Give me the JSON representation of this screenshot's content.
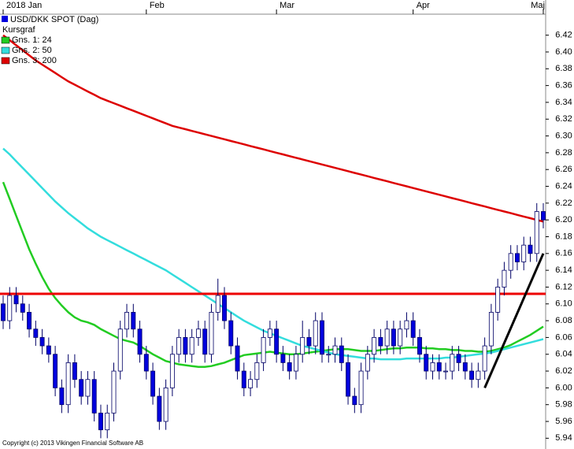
{
  "chart_data": {
    "type": "candlestick",
    "title": "USD/DKK SPOT (Dag)",
    "legend_title": "Kursgraf",
    "copyright": "Copyright (c) 2013 Vikingen Financial Software AB",
    "categories": [
      "2018 Jan",
      null,
      null,
      null,
      null,
      null,
      null,
      null,
      null,
      null,
      null,
      null,
      null,
      null,
      null,
      null,
      null,
      null,
      null,
      null,
      null,
      null,
      "Feb",
      null,
      null,
      null,
      null,
      null,
      null,
      null,
      null,
      null,
      null,
      null,
      null,
      null,
      null,
      null,
      null,
      null,
      null,
      null,
      "Mar",
      null,
      null,
      null,
      null,
      null,
      null,
      null,
      null,
      null,
      null,
      null,
      null,
      null,
      null,
      null,
      null,
      null,
      null,
      null,
      null,
      "Apr",
      null,
      null,
      null,
      null,
      null,
      null,
      null,
      null,
      null,
      null,
      null,
      null,
      null,
      null,
      null,
      null,
      null,
      null,
      null,
      "Maj"
    ],
    "open": [
      6.1,
      6.08,
      6.11,
      6.1,
      6.09,
      6.07,
      6.06,
      6.05,
      6.04,
      6.0,
      5.98,
      6.03,
      6.01,
      5.99,
      6.01,
      5.97,
      5.95,
      5.97,
      6.02,
      6.07,
      6.09,
      6.07,
      6.04,
      6.02,
      5.99,
      5.96,
      6.0,
      6.04,
      6.06,
      6.04,
      6.06,
      6.07,
      6.04,
      6.09,
      6.11,
      6.08,
      6.05,
      6.02,
      6.0,
      6.01,
      6.03,
      6.06,
      6.07,
      6.04,
      6.03,
      6.02,
      6.04,
      6.06,
      6.05,
      6.08,
      6.04,
      6.04,
      6.05,
      6.03,
      5.99,
      5.98,
      6.02,
      6.04,
      6.06,
      6.05,
      6.07,
      6.05,
      6.07,
      6.08,
      6.06,
      6.04,
      6.02,
      6.03,
      6.02,
      6.02,
      6.04,
      6.03,
      6.02,
      6.01,
      6.02,
      6.05,
      6.09,
      6.12,
      6.14,
      6.16,
      6.15,
      6.17,
      6.16,
      6.21
    ],
    "high": [
      6.11,
      6.12,
      6.12,
      6.11,
      6.1,
      6.08,
      6.07,
      6.06,
      6.05,
      6.01,
      6.04,
      6.04,
      6.02,
      6.02,
      6.02,
      5.98,
      5.98,
      6.03,
      6.08,
      6.1,
      6.1,
      6.08,
      6.05,
      6.03,
      6.0,
      6.01,
      6.05,
      6.07,
      6.07,
      6.07,
      6.08,
      6.08,
      6.1,
      6.13,
      6.12,
      6.09,
      6.06,
      6.03,
      6.02,
      6.04,
      6.07,
      6.08,
      6.08,
      6.05,
      6.04,
      6.05,
      6.08,
      6.07,
      6.09,
      6.09,
      6.05,
      6.06,
      6.06,
      6.04,
      6.0,
      6.03,
      6.05,
      6.07,
      6.07,
      6.08,
      6.08,
      6.08,
      6.09,
      6.09,
      6.07,
      6.05,
      6.04,
      6.04,
      6.03,
      6.05,
      6.05,
      6.04,
      6.03,
      6.03,
      6.06,
      6.1,
      6.13,
      6.15,
      6.17,
      6.17,
      6.18,
      6.18,
      6.22,
      6.22
    ],
    "low": [
      6.07,
      6.07,
      6.09,
      6.08,
      6.06,
      6.05,
      6.04,
      6.03,
      5.99,
      5.97,
      5.97,
      6.0,
      5.98,
      5.98,
      5.96,
      5.94,
      5.94,
      5.96,
      6.01,
      6.06,
      6.06,
      6.03,
      6.01,
      5.98,
      5.95,
      5.95,
      5.99,
      6.03,
      6.03,
      6.03,
      6.05,
      6.03,
      6.03,
      6.08,
      6.07,
      6.04,
      6.01,
      5.99,
      5.99,
      6.0,
      6.02,
      6.05,
      6.03,
      6.02,
      6.01,
      6.01,
      6.03,
      6.04,
      6.04,
      6.03,
      6.03,
      6.03,
      6.02,
      5.98,
      5.97,
      5.97,
      6.01,
      6.03,
      6.04,
      6.04,
      6.04,
      6.04,
      6.06,
      6.05,
      6.03,
      6.01,
      6.01,
      6.01,
      6.01,
      6.01,
      6.02,
      6.01,
      6.0,
      6.0,
      6.01,
      6.04,
      6.08,
      6.11,
      6.13,
      6.14,
      6.14,
      6.15,
      6.15,
      6.19
    ],
    "close": [
      6.08,
      6.11,
      6.1,
      6.09,
      6.07,
      6.06,
      6.05,
      6.04,
      6.0,
      5.98,
      6.03,
      6.01,
      5.99,
      6.01,
      5.97,
      5.95,
      5.97,
      6.02,
      6.07,
      6.09,
      6.07,
      6.04,
      6.02,
      5.99,
      5.96,
      6.0,
      6.04,
      6.06,
      6.04,
      6.06,
      6.07,
      6.04,
      6.09,
      6.11,
      6.08,
      6.05,
      6.02,
      6.0,
      6.01,
      6.03,
      6.06,
      6.07,
      6.04,
      6.03,
      6.02,
      6.04,
      6.06,
      6.05,
      6.08,
      6.04,
      6.04,
      6.05,
      6.03,
      5.99,
      5.98,
      6.02,
      6.04,
      6.06,
      6.05,
      6.07,
      6.05,
      6.07,
      6.08,
      6.06,
      6.04,
      6.02,
      6.03,
      6.02,
      6.02,
      6.04,
      6.03,
      6.02,
      6.01,
      6.02,
      6.05,
      6.09,
      6.12,
      6.14,
      6.16,
      6.15,
      6.17,
      6.16,
      6.21,
      6.2
    ],
    "up_color": "#ffffff",
    "down_color": "#0000dd",
    "series": [
      {
        "name": "Gns. 1: 24",
        "color": "#22cc22",
        "values": [
          6.245,
          6.225,
          6.205,
          6.185,
          6.165,
          6.148,
          6.132,
          6.118,
          6.107,
          6.098,
          6.09,
          6.084,
          6.08,
          6.078,
          6.075,
          6.07,
          6.066,
          6.062,
          6.058,
          6.056,
          6.054,
          6.05,
          6.045,
          6.04,
          6.036,
          6.032,
          6.03,
          6.028,
          6.027,
          6.026,
          6.025,
          6.025,
          6.026,
          6.028,
          6.03,
          6.033,
          6.036,
          6.039,
          6.04,
          6.041,
          6.042,
          6.043,
          6.042,
          6.041,
          6.04,
          6.04,
          6.041,
          6.042,
          6.043,
          6.044,
          6.045,
          6.046,
          6.046,
          6.046,
          6.045,
          6.044,
          6.044,
          6.044,
          6.045,
          6.046,
          6.047,
          6.047,
          6.048,
          6.048,
          6.048,
          6.047,
          6.047,
          6.046,
          6.046,
          6.045,
          6.045,
          6.044,
          6.044,
          6.043,
          6.043,
          6.044,
          6.046,
          6.048,
          6.051,
          6.055,
          6.059,
          6.063,
          6.068,
          6.073
        ]
      },
      {
        "name": "Gns. 2: 50",
        "color": "#33dddd",
        "values": [
          6.285,
          6.278,
          6.27,
          6.262,
          6.254,
          6.246,
          6.238,
          6.23,
          6.222,
          6.215,
          6.208,
          6.202,
          6.196,
          6.19,
          6.185,
          6.18,
          6.176,
          6.172,
          6.168,
          6.164,
          6.16,
          6.156,
          6.152,
          6.148,
          6.144,
          6.14,
          6.135,
          6.13,
          6.125,
          6.12,
          6.115,
          6.11,
          6.105,
          6.1,
          6.095,
          6.09,
          6.085,
          6.08,
          6.076,
          6.072,
          6.068,
          6.065,
          6.062,
          6.059,
          6.056,
          6.053,
          6.05,
          6.048,
          6.046,
          6.044,
          6.042,
          6.04,
          6.039,
          6.038,
          6.037,
          6.036,
          6.035,
          6.035,
          6.034,
          6.034,
          6.034,
          6.034,
          6.035,
          6.035,
          6.035,
          6.035,
          6.035,
          6.035,
          6.036,
          6.036,
          6.037,
          6.038,
          6.039,
          6.04,
          6.041,
          6.042,
          6.044,
          6.046,
          6.048,
          6.05,
          6.052,
          6.054,
          6.056,
          6.058
        ]
      },
      {
        "name": "Gns. 3: 200",
        "color": "#dd0000",
        "values": [
          6.42,
          6.414,
          6.408,
          6.402,
          6.396,
          6.39,
          6.385,
          6.38,
          6.375,
          6.37,
          6.365,
          6.361,
          6.357,
          6.353,
          6.349,
          6.345,
          6.342,
          6.339,
          6.336,
          6.333,
          6.33,
          6.327,
          6.324,
          6.321,
          6.318,
          6.315,
          6.312,
          6.31,
          6.308,
          6.306,
          6.304,
          6.302,
          6.3,
          6.298,
          6.296,
          6.294,
          6.292,
          6.29,
          6.288,
          6.286,
          6.284,
          6.282,
          6.28,
          6.278,
          6.276,
          6.274,
          6.272,
          6.27,
          6.268,
          6.266,
          6.264,
          6.262,
          6.26,
          6.258,
          6.256,
          6.254,
          6.252,
          6.25,
          6.248,
          6.246,
          6.244,
          6.242,
          6.24,
          6.238,
          6.236,
          6.234,
          6.232,
          6.23,
          6.228,
          6.226,
          6.224,
          6.222,
          6.22,
          6.218,
          6.216,
          6.214,
          6.212,
          6.21,
          6.208,
          6.206,
          6.204,
          6.202,
          6.2,
          6.198
        ]
      }
    ],
    "hline": 6.112,
    "hline_color": "#ee0000",
    "trendline": {
      "x": [
        74,
        83
      ],
      "y": [
        6.0,
        6.16
      ]
    },
    "ylim": [
      5.93,
      6.445
    ],
    "yticks": [
      5.94,
      5.96,
      5.98,
      {
        "value": 6,
        "label": "6.00"
      },
      6.02,
      6.04,
      6.06,
      6.08,
      {
        "value": 6.1,
        "label": "6.10"
      },
      6.12,
      6.14,
      6.16,
      6.18,
      {
        "value": 6.2,
        "label": "6.20"
      },
      6.22,
      6.24,
      6.26,
      6.28,
      {
        "value": 6.3,
        "label": "6.30"
      },
      6.32,
      6.34,
      6.36,
      6.38,
      {
        "value": 6.4,
        "label": "6.40"
      },
      6.42
    ],
    "axis_side": "right"
  }
}
